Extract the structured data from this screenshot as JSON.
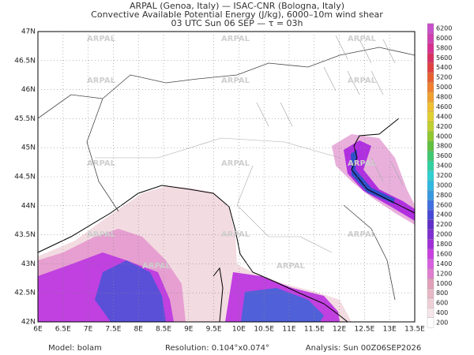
{
  "header": {
    "lines": [
      "ARPAL (Genoa, Italy)  —  ISAC-CNR (Bologna, Italy)",
      "Convective Available Potential Energy (J/kg), 6000–10m wind shear",
      "03 UTC Sun 06 SEP  —  τ = 03h"
    ]
  },
  "map": {
    "lat_ticks": [
      "42N",
      "42.5N",
      "43N",
      "43.5N",
      "44N",
      "44.5N",
      "45N",
      "45.5N",
      "46N",
      "46.5N",
      "47N"
    ],
    "lon_ticks": [
      "6E",
      "6.5E",
      "7E",
      "7.5E",
      "8E",
      "8.5E",
      "9E",
      "9.5E",
      "10E",
      "10.5E",
      "11E",
      "11.5E",
      "12E",
      "12.5E",
      "13E",
      "13.5E"
    ],
    "watermark": "ARPAL"
  },
  "colorbar": {
    "levels": [
      200,
      400,
      600,
      800,
      1000,
      1200,
      1400,
      1600,
      1800,
      2000,
      2200,
      2400,
      2600,
      2800,
      3000,
      3200,
      3400,
      3600,
      3800,
      4000,
      4200,
      4400,
      4600,
      4800,
      5000,
      5200,
      5400,
      5600,
      5800,
      6000,
      6200
    ],
    "colors": [
      "#ffffff",
      "#f6e6ea",
      "#efd0d8",
      "#e8b8c6",
      "#e0a0b8",
      "#e07ed0",
      "#d860e0",
      "#c840e0",
      "#a030d8",
      "#8030d0",
      "#6030c8",
      "#4848d8",
      "#4070e0",
      "#3898e0",
      "#30b8e0",
      "#30d0d0",
      "#30d0a0",
      "#40c870",
      "#60c040",
      "#90c830",
      "#c0d030",
      "#e0d030",
      "#f0c030",
      "#f0a030",
      "#f08030",
      "#e86030",
      "#e04040",
      "#d83060",
      "#d83090",
      "#d040b0",
      "#c850c8"
    ]
  },
  "footer": {
    "model": "Model: bolam",
    "resolution": "Resolution: 0.104°x0.074°",
    "analysis": "Analysis: Sun 00Z06SEP2026"
  }
}
